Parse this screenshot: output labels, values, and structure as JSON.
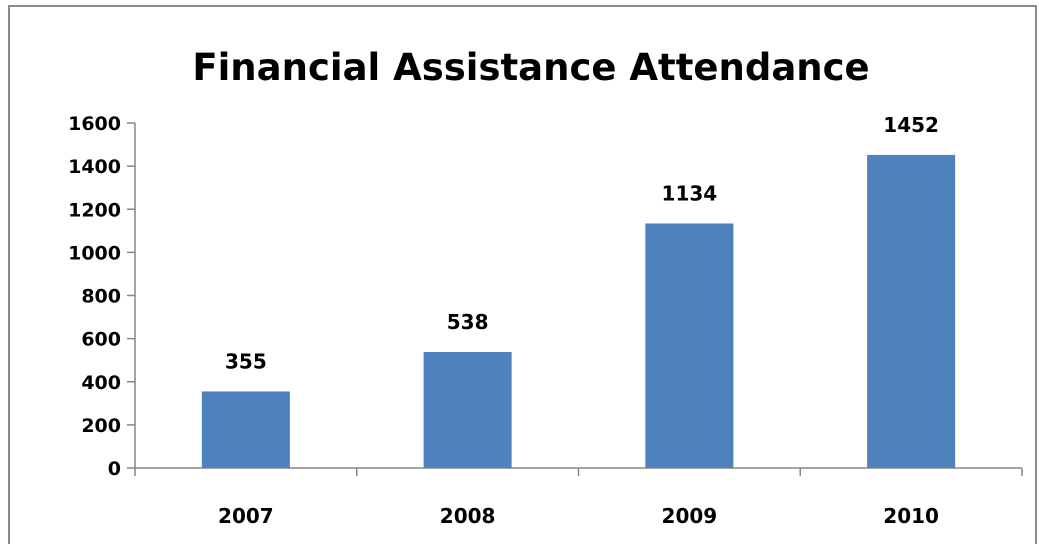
{
  "chart_data": {
    "type": "bar",
    "title": "Financial Assistance Attendance",
    "xlabel": "",
    "ylabel": "",
    "categories": [
      "2007",
      "2008",
      "2009",
      "2010"
    ],
    "values": [
      355,
      538,
      1134,
      1452
    ],
    "data_labels": [
      "355",
      "538",
      "1134",
      "1452"
    ],
    "ylim": [
      0,
      1600
    ],
    "yticks": [
      0,
      200,
      400,
      600,
      800,
      1000,
      1200,
      1400,
      1600
    ],
    "ytick_labels": [
      "0",
      "200",
      "400",
      "600",
      "800",
      "1000",
      "1200",
      "1400",
      "1600"
    ],
    "bar_color": "#4f81bd",
    "grid": false,
    "legend": "none"
  }
}
